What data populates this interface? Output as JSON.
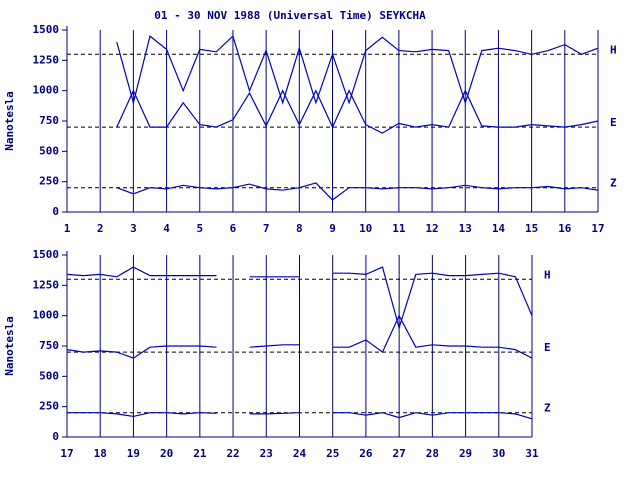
{
  "chart_data": [
    {
      "type": "line",
      "title": "01 - 30 NOV 1988 (Universal Time) SEYKCHA",
      "y_label": "Nanotesla",
      "x": [
        2.5,
        3,
        3.5,
        4,
        4.5,
        5,
        5.5,
        6,
        6.5,
        7,
        7.5,
        8,
        8.5,
        9,
        9.5,
        10,
        10.5,
        11,
        11.5,
        12,
        12.5,
        13,
        13.5,
        14,
        14.5,
        15,
        15.5,
        16,
        16.5,
        17
      ],
      "series": [
        {
          "name": "H",
          "color": "#0000c0",
          "values": [
            1400,
            900,
            1450,
            1340,
            1000,
            1340,
            1320,
            1450,
            1000,
            1330,
            900,
            1350,
            900,
            1300,
            900,
            1330,
            1440,
            1330,
            1320,
            1340,
            1330,
            900,
            1330,
            1350,
            1330,
            1300,
            1330,
            1380,
            1300,
            1350
          ]
        },
        {
          "name": "E",
          "color": "#0000c0",
          "values": [
            700,
            1000,
            700,
            700,
            900,
            720,
            700,
            760,
            980,
            710,
            1000,
            720,
            1000,
            700,
            1000,
            720,
            650,
            730,
            700,
            720,
            700,
            1000,
            710,
            700,
            700,
            720,
            710,
            700,
            720,
            750
          ]
        },
        {
          "name": "Z",
          "color": "#0000c0",
          "values": [
            200,
            150,
            200,
            190,
            220,
            200,
            190,
            200,
            230,
            190,
            180,
            200,
            240,
            100,
            200,
            200,
            190,
            200,
            200,
            190,
            200,
            220,
            200,
            190,
            200,
            200,
            210,
            190,
            200,
            180
          ]
        }
      ],
      "reference_lines": [
        1300,
        700,
        200
      ],
      "xlim": [
        1,
        17
      ],
      "xticks": [
        1,
        2,
        3,
        4,
        5,
        6,
        7,
        8,
        9,
        10,
        11,
        12,
        13,
        14,
        15,
        16,
        17
      ],
      "ylim": [
        0,
        1500
      ],
      "yticks": [
        0,
        250,
        500,
        750,
        1000,
        1250,
        1500
      ],
      "grid": true
    },
    {
      "type": "line",
      "y_label": "Nanotesla",
      "x": [
        17,
        17.5,
        18,
        18.5,
        19,
        19.5,
        20,
        20.5,
        21,
        21.5,
        22,
        22.5,
        23,
        23.5,
        24,
        24.5,
        25,
        25.5,
        26,
        26.5,
        27,
        27.5,
        28,
        28.5,
        29,
        29.5,
        30,
        30.5,
        31
      ],
      "series": [
        {
          "name": "H",
          "color": "#0000c0",
          "values": [
            1340,
            1330,
            1340,
            1320,
            1400,
            1330,
            1330,
            1330,
            1330,
            1330,
            null,
            1320,
            1320,
            1320,
            1320,
            null,
            1350,
            1350,
            1340,
            1400,
            900,
            1340,
            1350,
            1330,
            1330,
            1340,
            1350,
            1320,
            1000
          ]
        },
        {
          "name": "E",
          "color": "#0000c0",
          "values": [
            720,
            700,
            710,
            700,
            650,
            740,
            750,
            750,
            750,
            740,
            null,
            740,
            750,
            760,
            760,
            null,
            740,
            740,
            800,
            700,
            1000,
            740,
            760,
            750,
            750,
            740,
            740,
            720,
            650
          ]
        },
        {
          "name": "Z",
          "color": "#0000c0",
          "values": [
            200,
            200,
            200,
            190,
            170,
            200,
            200,
            190,
            200,
            195,
            null,
            190,
            190,
            195,
            200,
            null,
            200,
            200,
            180,
            200,
            160,
            200,
            180,
            200,
            200,
            200,
            200,
            190,
            150
          ]
        }
      ],
      "reference_lines": [
        1300,
        700,
        200
      ],
      "xlim": [
        17,
        31
      ],
      "xticks": [
        17,
        18,
        19,
        20,
        21,
        22,
        23,
        24,
        25,
        26,
        27,
        28,
        29,
        30,
        31
      ],
      "ylim": [
        0,
        1500
      ],
      "yticks": [
        0,
        250,
        500,
        750,
        1000,
        1250,
        1500
      ],
      "grid": true
    }
  ]
}
